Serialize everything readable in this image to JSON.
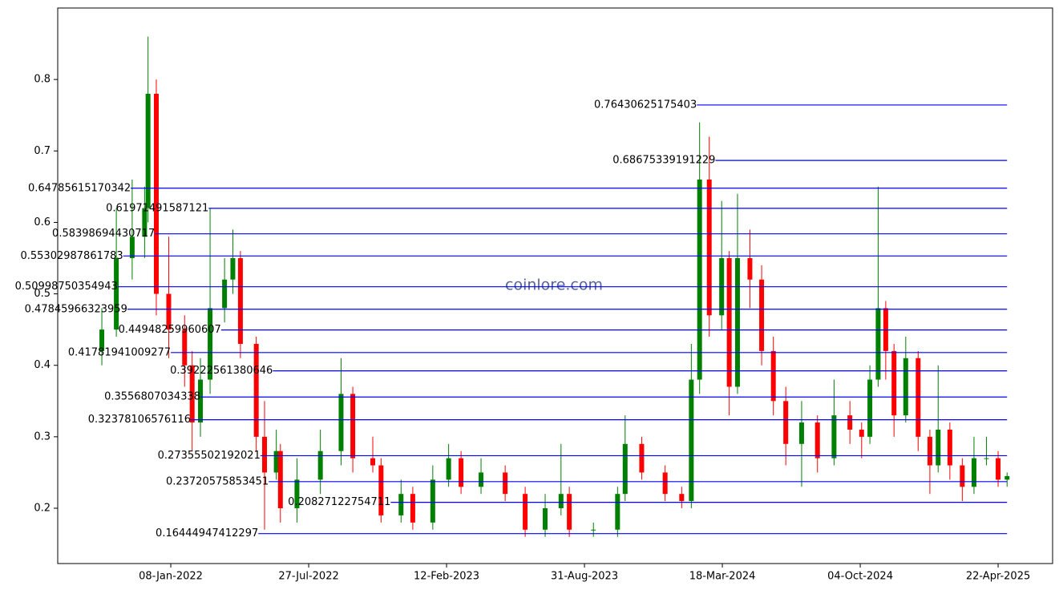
{
  "chart_data": {
    "type": "candlestick",
    "watermark": "coinlore.com",
    "up_color": "#008000",
    "down_color": "#ff0000",
    "level_color": "#0000ff",
    "xlim": [
      "2021-07-28",
      "2025-07-10"
    ],
    "xticks": [
      {
        "value": "2022-01-08",
        "label": "08-Jan-2022"
      },
      {
        "value": "2022-07-27",
        "label": "27-Jul-2022"
      },
      {
        "value": "2023-02-12",
        "label": "12-Feb-2023"
      },
      {
        "value": "2023-08-31",
        "label": "31-Aug-2023"
      },
      {
        "value": "2024-03-18",
        "label": "18-Mar-2024"
      },
      {
        "value": "2024-10-04",
        "label": "04-Oct-2024"
      },
      {
        "value": "2025-04-22",
        "label": "22-Apr-2025"
      }
    ],
    "ylim": [
      0.1226,
      0.9
    ],
    "yticks": [
      0.2,
      0.3,
      0.4,
      0.5,
      0.6,
      0.7,
      0.8
    ],
    "x": [
      "2021-09-30",
      "2021-10-21",
      "2021-11-13",
      "2021-12-01",
      "2021-12-06",
      "2021-12-18",
      "2022-01-05",
      "2022-01-28",
      "2022-02-08",
      "2022-02-20",
      "2022-03-06",
      "2022-03-27",
      "2022-04-08",
      "2022-04-19",
      "2022-05-12",
      "2022-05-24",
      "2022-06-10",
      "2022-06-16",
      "2022-07-10",
      "2022-08-13",
      "2022-09-12",
      "2022-09-29",
      "2022-10-28",
      "2022-11-09",
      "2022-12-08",
      "2022-12-25",
      "2023-01-23",
      "2023-02-15",
      "2023-03-05",
      "2023-04-03",
      "2023-05-08",
      "2023-06-06",
      "2023-07-05",
      "2023-07-28",
      "2023-08-09",
      "2023-09-13",
      "2023-10-18",
      "2023-10-29",
      "2023-11-22",
      "2023-12-26",
      "2024-01-19",
      "2024-02-02",
      "2024-02-14",
      "2024-02-28",
      "2024-03-17",
      "2024-03-28",
      "2024-04-09",
      "2024-04-27",
      "2024-05-14",
      "2024-05-31",
      "2024-06-18",
      "2024-07-11",
      "2024-08-03",
      "2024-08-27",
      "2024-09-19",
      "2024-10-06",
      "2024-10-18",
      "2024-10-30",
      "2024-11-10",
      "2024-11-22",
      "2024-12-09",
      "2024-12-27",
      "2025-01-13",
      "2025-01-25",
      "2025-02-11",
      "2025-03-01",
      "2025-03-18",
      "2025-04-05",
      "2025-04-22",
      "2025-05-05"
    ],
    "open": [
      0.42,
      0.45,
      0.55,
      0.58,
      0.62,
      0.78,
      0.5,
      0.45,
      0.4,
      0.32,
      0.38,
      0.48,
      0.52,
      0.55,
      0.43,
      0.3,
      0.25,
      0.28,
      0.2,
      0.24,
      0.28,
      0.36,
      0.27,
      0.26,
      0.19,
      0.22,
      0.18,
      0.24,
      0.27,
      0.23,
      0.25,
      0.22,
      0.17,
      0.2,
      0.22,
      0.17,
      0.17,
      0.22,
      0.29,
      0.25,
      0.22,
      0.21,
      0.38,
      0.66,
      0.47,
      0.55,
      0.37,
      0.55,
      0.52,
      0.42,
      0.35,
      0.29,
      0.32,
      0.27,
      0.33,
      0.31,
      0.3,
      0.38,
      0.48,
      0.42,
      0.33,
      0.41,
      0.3,
      0.26,
      0.31,
      0.26,
      0.23,
      0.27,
      0.27,
      0.24
    ],
    "high": [
      0.48,
      0.62,
      0.66,
      0.65,
      0.86,
      0.8,
      0.58,
      0.47,
      0.42,
      0.41,
      0.62,
      0.55,
      0.59,
      0.56,
      0.44,
      0.35,
      0.31,
      0.29,
      0.27,
      0.31,
      0.41,
      0.37,
      0.3,
      0.27,
      0.24,
      0.23,
      0.26,
      0.29,
      0.28,
      0.27,
      0.26,
      0.23,
      0.22,
      0.29,
      0.23,
      0.18,
      0.23,
      0.33,
      0.3,
      0.26,
      0.23,
      0.43,
      0.74,
      0.72,
      0.63,
      0.56,
      0.64,
      0.59,
      0.54,
      0.44,
      0.37,
      0.35,
      0.33,
      0.38,
      0.35,
      0.32,
      0.4,
      0.65,
      0.49,
      0.43,
      0.44,
      0.42,
      0.31,
      0.4,
      0.32,
      0.27,
      0.3,
      0.3,
      0.28,
      0.25
    ],
    "low": [
      0.4,
      0.44,
      0.52,
      0.55,
      0.6,
      0.47,
      0.41,
      0.37,
      0.28,
      0.3,
      0.36,
      0.46,
      0.5,
      0.41,
      0.28,
      0.17,
      0.24,
      0.18,
      0.18,
      0.22,
      0.26,
      0.25,
      0.25,
      0.18,
      0.18,
      0.17,
      0.17,
      0.23,
      0.22,
      0.22,
      0.21,
      0.16,
      0.16,
      0.19,
      0.16,
      0.16,
      0.16,
      0.21,
      0.24,
      0.21,
      0.2,
      0.2,
      0.36,
      0.44,
      0.45,
      0.33,
      0.36,
      0.48,
      0.4,
      0.33,
      0.26,
      0.23,
      0.25,
      0.26,
      0.29,
      0.27,
      0.29,
      0.37,
      0.38,
      0.3,
      0.32,
      0.28,
      0.22,
      0.25,
      0.24,
      0.21,
      0.22,
      0.26,
      0.23,
      0.23
    ],
    "close": [
      0.45,
      0.55,
      0.58,
      0.62,
      0.78,
      0.5,
      0.45,
      0.4,
      0.32,
      0.38,
      0.48,
      0.52,
      0.55,
      0.43,
      0.3,
      0.25,
      0.28,
      0.2,
      0.24,
      0.28,
      0.36,
      0.27,
      0.26,
      0.19,
      0.22,
      0.18,
      0.24,
      0.27,
      0.23,
      0.25,
      0.22,
      0.17,
      0.2,
      0.22,
      0.17,
      0.17,
      0.22,
      0.29,
      0.25,
      0.22,
      0.21,
      0.38,
      0.66,
      0.47,
      0.55,
      0.37,
      0.55,
      0.52,
      0.42,
      0.35,
      0.29,
      0.32,
      0.27,
      0.33,
      0.31,
      0.3,
      0.38,
      0.48,
      0.42,
      0.33,
      0.41,
      0.3,
      0.26,
      0.31,
      0.26,
      0.23,
      0.27,
      0.27,
      0.24,
      0.245
    ],
    "levels": [
      {
        "value": 0.76430625175403,
        "start": "2024-02-10"
      },
      {
        "value": 0.68675339191229,
        "start": "2024-03-08"
      },
      {
        "value": 0.64785615170342,
        "start": "2021-11-11"
      },
      {
        "value": 0.61971491587121,
        "start": "2022-03-04"
      },
      {
        "value": 0.58398694430717,
        "start": "2021-12-16"
      },
      {
        "value": 0.55302987861783,
        "start": "2021-10-31"
      },
      {
        "value": 0.50998750354943,
        "start": "2021-10-23"
      },
      {
        "value": 0.47845966323959,
        "start": "2021-11-06"
      },
      {
        "value": 0.44948259960607,
        "start": "2022-03-22"
      },
      {
        "value": 0.41781941009277,
        "start": "2022-01-08"
      },
      {
        "value": 0.39222561380646,
        "start": "2022-06-05"
      },
      {
        "value": 0.3556807034338,
        "start": "2022-02-20"
      },
      {
        "value": 0.32378106576116,
        "start": "2022-02-06"
      },
      {
        "value": 0.27355502192021,
        "start": "2022-05-18"
      },
      {
        "value": 0.23720575853451,
        "start": "2022-05-30"
      },
      {
        "value": 0.20827122754711,
        "start": "2022-11-23"
      },
      {
        "value": 0.16444947412297,
        "start": "2022-05-15"
      }
    ]
  }
}
